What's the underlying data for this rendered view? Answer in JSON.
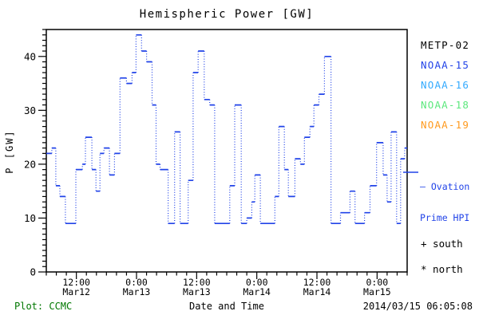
{
  "title": "Hemispheric Power [GW]",
  "ylabel": "P [GW]",
  "xlabel": "Date and Time",
  "plot_credit": "Plot: CCMC",
  "timestamp": "2014/03/15 06:05:08",
  "colors": {
    "data_line": "#2143e8",
    "credit_green": "#007700",
    "axis_black": "#000000"
  },
  "legend": {
    "satellites": [
      {
        "label": "METP-02",
        "color": "#000000"
      },
      {
        "label": "NOAA-15",
        "color": "#2143e8"
      },
      {
        "label": "NOAA-16",
        "color": "#33aaff"
      },
      {
        "label": "NOAA-18",
        "color": "#5ce87d"
      },
      {
        "label": "NOAA-19",
        "color": "#ff9a1e"
      }
    ],
    "line_legend": {
      "line1": "— Ovation",
      "line2": "Prime HPI",
      "color": "#2143e8"
    },
    "markers": [
      {
        "symbol": "+",
        "label": "south"
      },
      {
        "symbol": "*",
        "label": "north"
      }
    ]
  },
  "chart_data": {
    "type": "line",
    "style": "step",
    "series_name": "Ovation Prime HPI",
    "line_color": "#2143e8",
    "title": "Hemispheric Power [GW]",
    "xlabel": "Date and Time",
    "ylabel": "P [GW]",
    "x_start": "2014-03-12 06:00",
    "x_end": "2014-03-15 06:00",
    "x_hours_span": 72,
    "ylim": [
      0,
      45
    ],
    "yticks": [
      0,
      10,
      20,
      30,
      40
    ],
    "y_minor_step_gw": 1,
    "x_minor_step_hours": 2,
    "grid": false,
    "legend_position": "right-outside",
    "xticks": [
      {
        "t": 6,
        "time": "12:00",
        "date": "Mar12"
      },
      {
        "t": 18,
        "time": "0:00",
        "date": "Mar13"
      },
      {
        "t": 30,
        "time": "12:00",
        "date": "Mar13"
      },
      {
        "t": 42,
        "time": "0:00",
        "date": "Mar14"
      },
      {
        "t": 54,
        "time": "12:00",
        "date": "Mar14"
      },
      {
        "t": 66,
        "time": "0:00",
        "date": "Mar15"
      }
    ],
    "steps_t_hours_value_gw": [
      [
        0,
        22
      ],
      [
        1.1,
        23
      ],
      [
        1.9,
        16
      ],
      [
        2.7,
        14
      ],
      [
        3.8,
        9
      ],
      [
        5.9,
        19
      ],
      [
        7.2,
        20
      ],
      [
        7.8,
        25
      ],
      [
        9.1,
        19
      ],
      [
        9.9,
        15
      ],
      [
        10.7,
        22
      ],
      [
        11.5,
        23
      ],
      [
        12.6,
        18
      ],
      [
        13.6,
        22
      ],
      [
        14.7,
        36
      ],
      [
        16,
        35
      ],
      [
        17.1,
        37
      ],
      [
        17.9,
        44
      ],
      [
        19,
        41
      ],
      [
        20,
        39
      ],
      [
        21.1,
        31
      ],
      [
        21.9,
        20
      ],
      [
        22.7,
        19
      ],
      [
        24.3,
        9
      ],
      [
        25.6,
        26
      ],
      [
        26.7,
        9
      ],
      [
        28.3,
        17
      ],
      [
        29.3,
        37
      ],
      [
        30.3,
        41
      ],
      [
        31.5,
        32
      ],
      [
        32.6,
        31
      ],
      [
        33.6,
        9
      ],
      [
        36.6,
        16
      ],
      [
        37.6,
        31
      ],
      [
        38.9,
        9
      ],
      [
        40,
        10
      ],
      [
        41,
        13
      ],
      [
        41.6,
        18
      ],
      [
        42.7,
        9
      ],
      [
        45.6,
        14
      ],
      [
        46.4,
        27
      ],
      [
        47.5,
        19
      ],
      [
        48.3,
        14
      ],
      [
        49.6,
        21
      ],
      [
        50.7,
        20
      ],
      [
        51.5,
        25
      ],
      [
        52.6,
        27
      ],
      [
        53.4,
        31
      ],
      [
        54.4,
        33
      ],
      [
        55.5,
        40
      ],
      [
        56.8,
        9
      ],
      [
        58.7,
        11
      ],
      [
        60.6,
        15
      ],
      [
        61.6,
        9
      ],
      [
        63.5,
        11
      ],
      [
        64.6,
        16
      ],
      [
        65.9,
        24
      ],
      [
        67.2,
        18
      ],
      [
        68,
        13
      ],
      [
        68.8,
        26
      ],
      [
        69.9,
        9
      ],
      [
        70.7,
        21
      ],
      [
        71.5,
        23
      ]
    ]
  }
}
